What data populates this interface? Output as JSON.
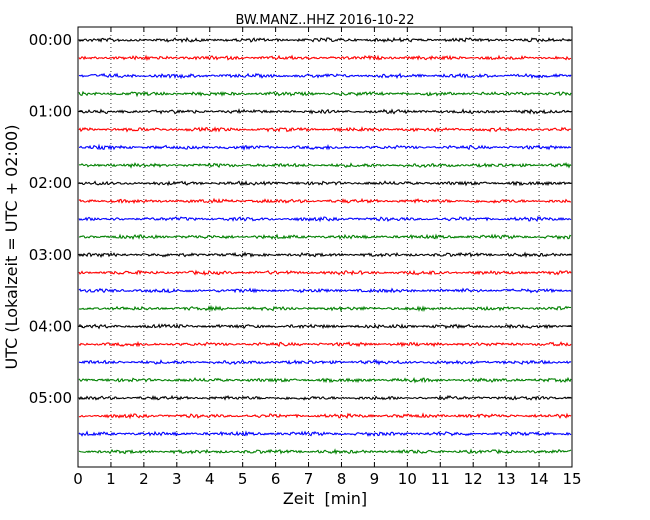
{
  "chart_data": {
    "type": "line",
    "title": "BW.MANZ..HHZ 2016-10-22",
    "xlabel": "Zeit  [min]",
    "ylabel": "UTC (Lokalzeit = UTC + 02:00)",
    "xlim": [
      0,
      15
    ],
    "x_ticks": [
      0,
      1,
      2,
      3,
      4,
      5,
      6,
      7,
      8,
      9,
      10,
      11,
      12,
      13,
      14,
      15
    ],
    "x_tick_labels": [
      "0",
      "1",
      "2",
      "3",
      "4",
      "5",
      "6",
      "7",
      "8",
      "9",
      "10",
      "11",
      "12",
      "13",
      "14",
      "15"
    ],
    "y_tick_labels": [
      "00:00",
      "01:00",
      "02:00",
      "03:00",
      "04:00",
      "05:00"
    ],
    "traces_per_hour": 4,
    "trace_count": 24,
    "trace_colors": [
      "#000000",
      "#ff0000",
      "#0000ff",
      "#008000"
    ],
    "grid": "vertical dotted",
    "legend": "none"
  }
}
